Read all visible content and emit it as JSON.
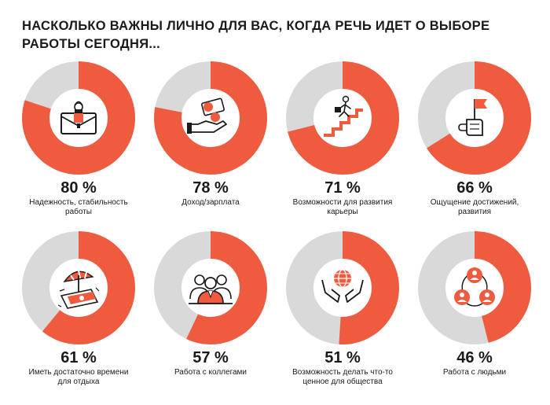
{
  "title_lines": [
    "НАСКОЛЬКО ВАЖНЫ ЛИЧНО ДЛЯ ВАС, КОГДА РЕЧЬ ИДЕТ О ВЫБОРЕ",
    "РАБОТЫ СЕГОДНЯ..."
  ],
  "colors": {
    "accent": "#ef5b3f",
    "rest": "#d9d9d9",
    "dark": "#1a1a1a"
  },
  "items": [
    {
      "value_text": "80 %",
      "label_lines": [
        "Надежность, стабильность",
        "работы"
      ],
      "icon": "briefcase-icon"
    },
    {
      "value_text": "78 %",
      "label_lines": [
        "Доход/зарплата"
      ],
      "icon": "money-hand-icon"
    },
    {
      "value_text": "71 %",
      "label_lines": [
        "Возможности для развития",
        "карьеры"
      ],
      "icon": "career-stairs-icon"
    },
    {
      "value_text": "66 %",
      "label_lines": [
        "Ощущение достижений,",
        "развития"
      ],
      "icon": "flag-hand-icon"
    },
    {
      "value_text": "61 %",
      "label_lines": [
        "Иметь достаточно времени",
        "для отдыха"
      ],
      "icon": "beach-umbrella-icon"
    },
    {
      "value_text": "57 %",
      "label_lines": [
        "Работа с коллегами"
      ],
      "icon": "colleagues-icon"
    },
    {
      "value_text": "51 %",
      "label_lines": [
        "Возможность делать что-то",
        "ценное для общества"
      ],
      "icon": "globe-hands-icon"
    },
    {
      "value_text": "46 %",
      "label_lines": [
        "Работа с людьми"
      ],
      "icon": "people-network-icon"
    }
  ],
  "chart_data": {
    "type": "pie",
    "subtype": "donut",
    "unit": "%",
    "categories": [
      "Надежность, стабильность работы",
      "Доход/зарплата",
      "Возможности для развития карьеры",
      "Ощущение достижений, развития",
      "Иметь достаточно времени для отдыха",
      "Работа с коллегами",
      "Возможность делать что-то ценное для общества",
      "Работа с людьми"
    ],
    "values": [
      80,
      78,
      71,
      66,
      61,
      57,
      51,
      46
    ],
    "max": 100
  }
}
